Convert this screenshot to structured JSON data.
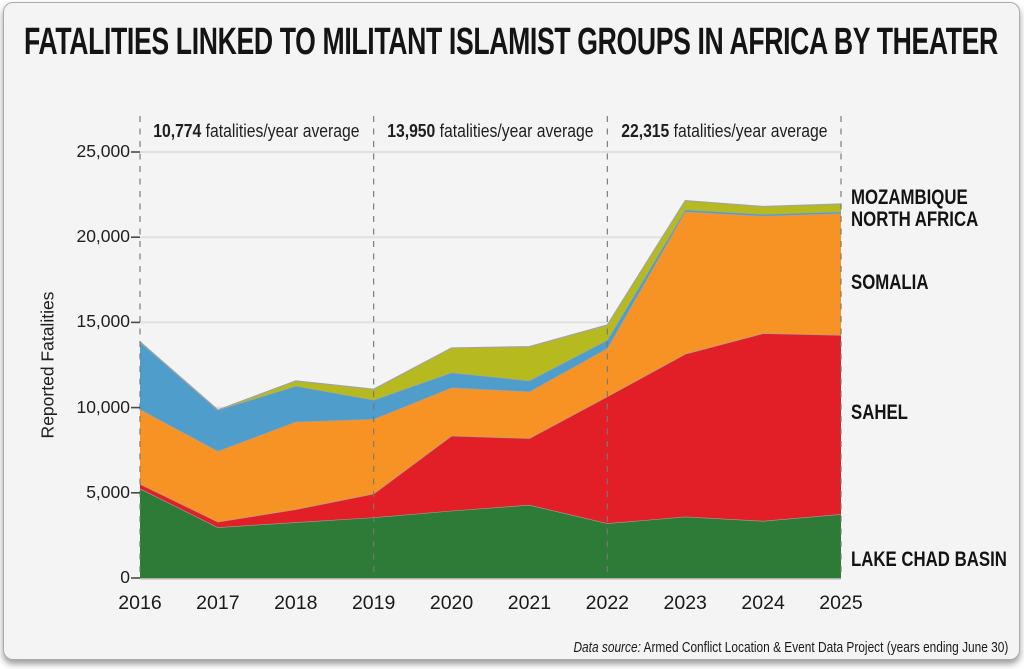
{
  "title": "FATALITIES LINKED TO MILITANT ISLAMIST GROUPS IN AFRICA BY THEATER",
  "period_averages": [
    {
      "value": "10,774",
      "label": "fatalities/year average"
    },
    {
      "value": "13,950",
      "label": "fatalities/year average"
    },
    {
      "value": "22,315",
      "label": "fatalities/year average"
    }
  ],
  "y_axis": {
    "title": "Reported Fatalities",
    "ticks": [
      "0",
      "5,000",
      "10,000",
      "15,000",
      "20,000",
      "25,000"
    ]
  },
  "x_axis": {
    "years": [
      "2016",
      "2017",
      "2018",
      "2019",
      "2020",
      "2021",
      "2022",
      "2023",
      "2024",
      "2025"
    ]
  },
  "source": {
    "prefix": "Data source:",
    "text": "Armed Conflict Location & Event Data Project (years ending June 30)"
  },
  "chart_data": {
    "type": "area",
    "stacked": true,
    "x": [
      2016,
      2017,
      2018,
      2019,
      2020,
      2021,
      2022,
      2023,
      2024,
      2025
    ],
    "series": [
      {
        "name": "LAKE CHAD BASIN",
        "color": "#2e7b37",
        "values": [
          5250,
          2980,
          3270,
          3560,
          3950,
          4290,
          3210,
          3600,
          3350,
          3750
        ]
      },
      {
        "name": "SAHEL",
        "color": "#e21e26",
        "values": [
          270,
          320,
          760,
          1390,
          4400,
          3910,
          7440,
          9550,
          11010,
          10510
        ]
      },
      {
        "name": "SOMALIA",
        "color": "#f79324",
        "values": [
          4380,
          4150,
          5140,
          4380,
          2820,
          2740,
          2830,
          8350,
          6890,
          7140
        ]
      },
      {
        "name": "NORTH AFRICA",
        "color": "#4f9dca",
        "values": [
          3960,
          2410,
          2100,
          1120,
          890,
          640,
          490,
          120,
          100,
          100
        ]
      },
      {
        "name": "MOZAMBIQUE",
        "color": "#b6ba1e",
        "values": [
          0,
          0,
          300,
          630,
          1440,
          2000,
          880,
          530,
          450,
          450
        ]
      }
    ],
    "ylim": [
      0,
      25000
    ],
    "gridline_values": [
      5000,
      10000,
      15000,
      20000,
      25000
    ],
    "dashed_years": [
      2016,
      2019,
      2022,
      2025
    ],
    "title": "FATALITIES LINKED TO MILITANT ISLAMIST GROUPS IN AFRICA BY THEATER",
    "ylabel": "Reported Fatalities",
    "legend_position": "right"
  }
}
